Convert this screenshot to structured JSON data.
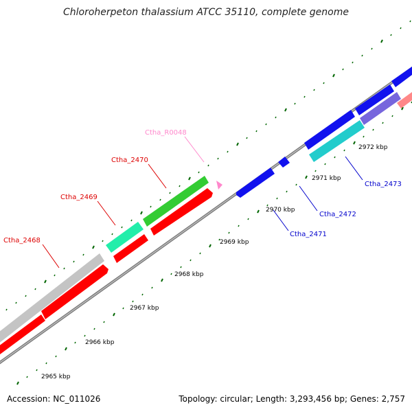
{
  "title": "Chloroherpeton thalassium ATCC 35110, complete genome",
  "footer": {
    "accession": "Accession: NC_011026",
    "summary": "Topology: circular; Length: 3,293,456 bp; Genes: 2,757"
  },
  "colors": {
    "backbone": "#888888",
    "forward_cds": "#ff0000",
    "reverse_cds": "#0000e0",
    "green_gene": "#33cc33",
    "teal_gene": "#22ddaa",
    "cyan_gene": "#22cccc",
    "grey_gene": "#c0c0c0",
    "pink_gene": "#ff88cc",
    "purple_gene": "#7766dd",
    "salmon_gene": "#ff8888",
    "tick": "#006600"
  },
  "ticks": [
    {
      "label": "2965 kbp"
    },
    {
      "label": "2966 kbp"
    },
    {
      "label": "2967 kbp"
    },
    {
      "label": "2968 kbp"
    },
    {
      "label": "2969 kbp"
    },
    {
      "label": "2970 kbp"
    },
    {
      "label": "2971 kbp"
    },
    {
      "label": "2972 kbp"
    }
  ],
  "gene_labels": [
    {
      "name": "Ctha_2468",
      "color": "#dd0000"
    },
    {
      "name": "Ctha_2469",
      "color": "#dd0000"
    },
    {
      "name": "Ctha_2470",
      "color": "#dd0000"
    },
    {
      "name": "Ctha_R0048",
      "color": "#ff88cc"
    },
    {
      "name": "Ctha_2471",
      "color": "#0000cc"
    },
    {
      "name": "Ctha_2472",
      "color": "#0000cc"
    },
    {
      "name": "Ctha_2473",
      "color": "#0000cc"
    }
  ]
}
